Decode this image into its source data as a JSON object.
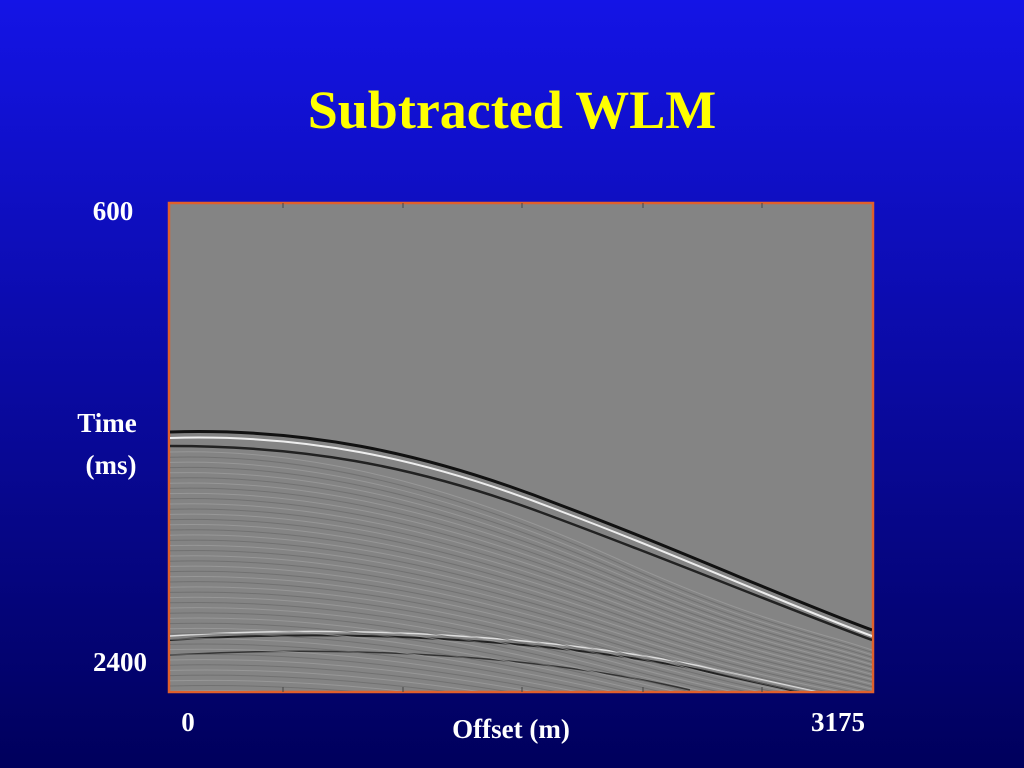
{
  "slide": {
    "title": "Subtracted WLM",
    "y_axis": {
      "top": "600",
      "bottom": "2400",
      "label_lines": [
        "Time",
        "(ms)"
      ]
    },
    "x_axis": {
      "left": "0",
      "right": "3175",
      "label": "Offset (m)"
    }
  }
}
